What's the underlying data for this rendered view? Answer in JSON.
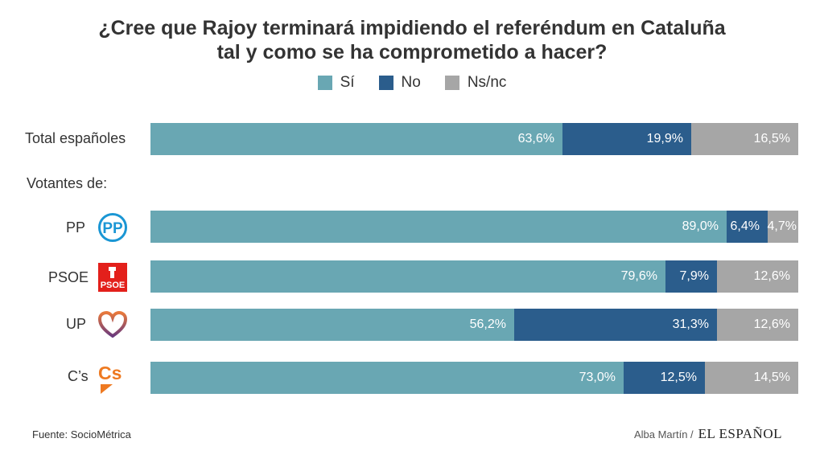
{
  "header": {
    "title_line1": "¿Cree que Rajoy terminará impidiendo el referéndum en Cataluña",
    "title_line2": "tal y como se ha comprometido a hacer?"
  },
  "chart_data": {
    "type": "bar",
    "orientation": "horizontal-stacked-100",
    "series": [
      {
        "name": "Sí",
        "color": "#69a7b3",
        "values": [
          63.6,
          89.0,
          79.6,
          56.2,
          73.0
        ]
      },
      {
        "name": "No",
        "color": "#2b5d8c",
        "values": [
          19.9,
          6.4,
          7.9,
          31.3,
          12.5
        ]
      },
      {
        "name": "Ns/nc",
        "color": "#a6a6a6",
        "values": [
          16.5,
          4.7,
          12.6,
          12.6,
          14.5
        ]
      }
    ],
    "categories": [
      "Total españoles",
      "PP",
      "PSOE",
      "UP",
      "C’s"
    ],
    "labels": [
      [
        "63,6%",
        "19,9%",
        "16,5%"
      ],
      [
        "89,0%",
        "6,4%",
        "4,7%"
      ],
      [
        "79,6%",
        "7,9%",
        "12,6%"
      ],
      [
        "56,2%",
        "31,3%",
        "12,6%"
      ],
      [
        "73,0%",
        "12,5%",
        "14,5%"
      ]
    ],
    "group_label": "Votantes de:",
    "xlim": [
      0,
      100
    ]
  },
  "legend": {
    "si": "Sí",
    "no": "No",
    "nsnc": "Ns/nc"
  },
  "logos": {
    "pp": "PP",
    "psoe": "PSOE",
    "cs": "Cs"
  },
  "footer": {
    "source_label": "Fuente:",
    "source_value": "SocioMétrica",
    "author": "Alba Martín /",
    "brand": "EL ESPAÑOL"
  },
  "colors": {
    "si": "#69a7b3",
    "no": "#2b5d8c",
    "nsnc": "#a6a6a6",
    "pp": "#1a96d4",
    "psoe": "#e3201b",
    "up_top": "#e8793c",
    "up_bottom": "#6b3a7d",
    "cs": "#ee7a22"
  }
}
